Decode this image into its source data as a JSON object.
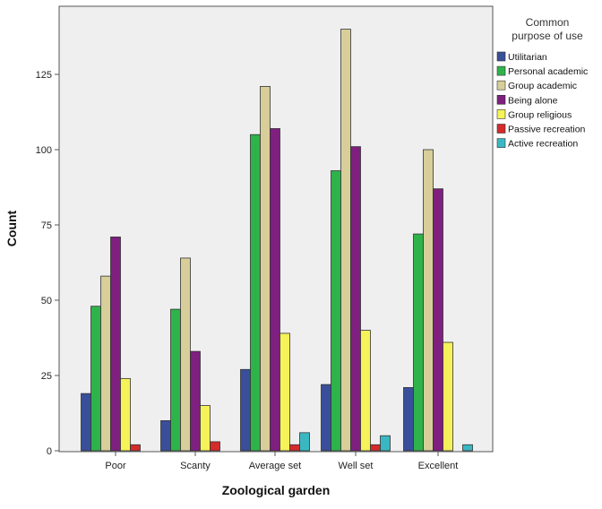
{
  "chart_data": {
    "type": "bar",
    "xlabel": "Zoological garden",
    "ylabel": "Count",
    "ylim": [
      0,
      145
    ],
    "yticks": [
      0,
      25,
      50,
      75,
      100,
      125
    ],
    "grid": false,
    "legend_position": "right",
    "legend_title_lines": [
      "Common",
      "purpose of use"
    ],
    "categories": [
      "Poor",
      "Scanty",
      "Average set",
      "Well set",
      "Excellent"
    ],
    "series": [
      {
        "name": "Utilitarian",
        "color": "#3a4f9a",
        "values": [
          19,
          10,
          27,
          22,
          21
        ]
      },
      {
        "name": "Personal academic",
        "color": "#2eb34a",
        "values": [
          48,
          47,
          105,
          93,
          72
        ]
      },
      {
        "name": "Group academic",
        "color": "#d8ce9a",
        "values": [
          58,
          64,
          121,
          140,
          100
        ]
      },
      {
        "name": "Being alone",
        "color": "#7f1f7f",
        "values": [
          71,
          33,
          107,
          101,
          87
        ]
      },
      {
        "name": "Group religious",
        "color": "#f5f25a",
        "values": [
          24,
          15,
          39,
          40,
          36
        ]
      },
      {
        "name": "Passive recreation",
        "color": "#d42b2b",
        "values": [
          2,
          3,
          2,
          2,
          0
        ]
      },
      {
        "name": "Active recreation",
        "color": "#3ab8c2",
        "values": [
          0,
          0,
          6,
          5,
          2
        ]
      }
    ],
    "colors": {
      "plot_background": "#efefef",
      "frame": "#555555"
    }
  }
}
